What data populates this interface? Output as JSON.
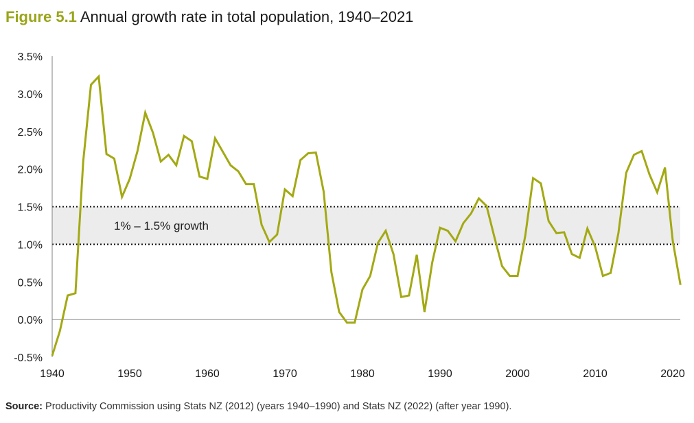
{
  "title": {
    "figure_label": "Figure 5.1",
    "text": "Annual growth rate in total population, 1940–2021"
  },
  "source": {
    "label": "Source:",
    "text": "Productivity Commission using Stats NZ (2012) (years 1940–1990) and Stats NZ (2022) (after year 1990)."
  },
  "colors": {
    "line": "#a3a913",
    "band": "#ececec",
    "title_accent": "#9aa51a"
  },
  "chart_data": {
    "type": "line",
    "title": "Annual growth rate in total population, 1940–2021",
    "xlabel": "",
    "ylabel": "",
    "xlim": [
      1940,
      2021
    ],
    "ylim": [
      -0.5,
      3.5
    ],
    "grid": false,
    "x_ticks": [
      1940,
      1950,
      1960,
      1970,
      1980,
      1990,
      2000,
      2010,
      2020
    ],
    "x_tick_labels": [
      "1940",
      "1950",
      "1960",
      "1970",
      "1980",
      "1990",
      "2000",
      "2010",
      "2020"
    ],
    "y_ticks": [
      -0.5,
      0,
      0.5,
      1,
      1.5,
      2,
      2.5,
      3,
      3.5
    ],
    "y_tick_labels": [
      "-0.5%",
      "0.0%",
      "0.5%",
      "1.0%",
      "1.5%",
      "2.0%",
      "2.5%",
      "3.0%",
      "3.5%"
    ],
    "band": {
      "from": 1.0,
      "to": 1.5,
      "label": "1% – 1.5% growth"
    },
    "series": [
      {
        "name": "Annual growth rate (%)",
        "x": [
          1940,
          1941,
          1942,
          1943,
          1944,
          1945,
          1946,
          1947,
          1948,
          1949,
          1950,
          1951,
          1952,
          1953,
          1954,
          1955,
          1956,
          1957,
          1958,
          1959,
          1960,
          1961,
          1962,
          1963,
          1964,
          1965,
          1966,
          1967,
          1968,
          1969,
          1970,
          1971,
          1972,
          1973,
          1974,
          1975,
          1976,
          1977,
          1978,
          1979,
          1980,
          1981,
          1982,
          1983,
          1984,
          1985,
          1986,
          1987,
          1988,
          1989,
          1990,
          1991,
          1992,
          1993,
          1994,
          1995,
          1996,
          1997,
          1998,
          1999,
          2000,
          2001,
          2002,
          2003,
          2004,
          2005,
          2006,
          2007,
          2008,
          2009,
          2010,
          2011,
          2012,
          2013,
          2014,
          2015,
          2016,
          2017,
          2018,
          2019,
          2020,
          2021
        ],
        "values": [
          -0.48,
          -0.15,
          0.32,
          0.35,
          2.1,
          3.12,
          3.23,
          2.2,
          2.14,
          1.63,
          1.87,
          2.24,
          2.75,
          2.48,
          2.1,
          2.19,
          2.05,
          2.44,
          2.37,
          1.9,
          1.87,
          2.41,
          2.23,
          2.05,
          1.97,
          1.8,
          1.8,
          1.26,
          1.03,
          1.13,
          1.73,
          1.64,
          2.12,
          2.21,
          2.22,
          1.7,
          0.63,
          0.1,
          -0.04,
          -0.04,
          0.4,
          0.58,
          1.02,
          1.18,
          0.87,
          0.3,
          0.32,
          0.86,
          0.1,
          0.76,
          1.22,
          1.18,
          1.04,
          1.28,
          1.41,
          1.61,
          1.51,
          1.1,
          0.71,
          0.58,
          0.58,
          1.12,
          1.88,
          1.81,
          1.31,
          1.15,
          1.16,
          0.87,
          0.82,
          1.21,
          0.97,
          0.58,
          0.62,
          1.15,
          1.95,
          2.19,
          2.24,
          1.93,
          1.69,
          2.02,
          1.05,
          0.46
        ]
      }
    ]
  }
}
